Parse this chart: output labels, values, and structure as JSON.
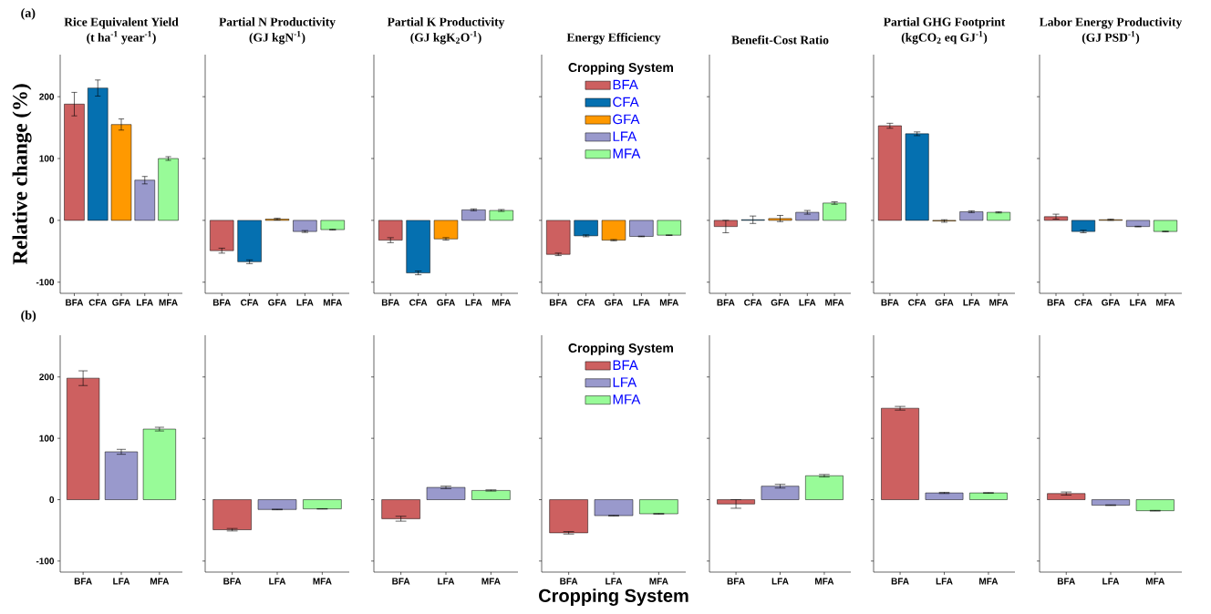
{
  "chart_data": [
    {
      "type": "bar",
      "title": "Rice Equivalent Yield",
      "subtitle": "(t ha$^{-1}$ year$^{-1}$)",
      "ylabel": "Relative change (%)",
      "annotations": [
        "(a)"
      ],
      "categories": [
        "BFA",
        "CFA",
        "GFA",
        "LFA",
        "MFA"
      ],
      "values": [
        188,
        214,
        155,
        65,
        100
      ],
      "errors": [
        19,
        13,
        9,
        6,
        3
      ],
      "colors": [
        "#cd6060",
        "#0570b0",
        "#ff9900",
        "#9999cc",
        "#98fb98"
      ],
      "ylim": [
        -118,
        268
      ],
      "yticks": [
        -100,
        0,
        100,
        200
      ]
    },
    {
      "type": "bar",
      "title": "Partial N Productivity",
      "subtitle": "(GJ kgN$^{-1}$)",
      "categories": [
        "BFA",
        "CFA",
        "GFA",
        "LFA",
        "MFA"
      ],
      "values": [
        -49,
        -67,
        2,
        -18,
        -15
      ],
      "errors": [
        4,
        3,
        1.5,
        1.5,
        0.5
      ],
      "colors": [
        "#cd6060",
        "#0570b0",
        "#ff9900",
        "#9999cc",
        "#98fb98"
      ],
      "ylim": [
        -118,
        268
      ],
      "yticks": [
        -100,
        0,
        100,
        200
      ],
      "tick_labels": "x"
    },
    {
      "type": "bar",
      "title": "Partial K Productivity",
      "subtitle": "(GJ kgK$_{2}$O$^{-1}$)",
      "categories": [
        "BFA",
        "CFA",
        "GFA",
        "LFA",
        "MFA"
      ],
      "values": [
        -32,
        -85,
        -30,
        17,
        16
      ],
      "errors": [
        4,
        3,
        2,
        1.5,
        1.5
      ],
      "colors": [
        "#cd6060",
        "#0570b0",
        "#ff9900",
        "#9999cc",
        "#98fb98"
      ],
      "ylim": [
        -118,
        268
      ],
      "yticks": [
        -100,
        0,
        100,
        200
      ],
      "tick_labels": "x"
    },
    {
      "type": "bar",
      "title": "Energy Efficiency",
      "legend": "top",
      "legend_title": "Cropping System",
      "categories": [
        "BFA",
        "CFA",
        "GFA",
        "LFA",
        "MFA"
      ],
      "series": [
        {
          "name": "BFA",
          "color": "#cd6060",
          "values": [
            -55,
            null,
            null,
            null,
            null
          ],
          "errors": [
            2,
            null,
            null,
            null,
            null
          ]
        },
        {
          "name": "CFA",
          "color": "#0570b0",
          "values": [
            null,
            -25,
            null,
            null,
            null
          ],
          "errors": [
            null,
            1.5,
            null,
            null,
            null
          ]
        },
        {
          "name": "GFA",
          "color": "#ff9900",
          "values": [
            null,
            null,
            -32,
            null,
            null
          ],
          "errors": [
            null,
            null,
            1,
            null,
            null
          ]
        },
        {
          "name": "LFA",
          "color": "#9999cc",
          "values": [
            null,
            null,
            null,
            -26,
            null
          ],
          "errors": [
            null,
            null,
            null,
            0.5,
            null
          ]
        },
        {
          "name": "MFA",
          "color": "#98fb98",
          "values": [
            null,
            null,
            null,
            null,
            -24
          ],
          "errors": [
            null,
            null,
            null,
            null,
            0.5
          ]
        }
      ],
      "ylim": [
        -118,
        268
      ],
      "yticks": [
        -100,
        0,
        100,
        200
      ],
      "tick_labels": "x"
    },
    {
      "type": "bar",
      "title": "Benefit-Cost Ratio",
      "categories": [
        "BFA",
        "CFA",
        "GFA",
        "LFA",
        "MFA"
      ],
      "values": [
        -10,
        1,
        3,
        13,
        28
      ],
      "errors": [
        10,
        6,
        5,
        3,
        2
      ],
      "colors": [
        "#cd6060",
        "#0570b0",
        "#ff9900",
        "#9999cc",
        "#98fb98"
      ],
      "ylim": [
        -118,
        268
      ],
      "yticks": [
        -100,
        0,
        100,
        200
      ],
      "tick_labels": "x"
    },
    {
      "type": "bar",
      "title": "Partial GHG Footprint",
      "subtitle": "(kgCO$_{2}$ eq GJ$^{-1}$)",
      "categories": [
        "BFA",
        "CFA",
        "GFA",
        "LFA",
        "MFA"
      ],
      "values": [
        153,
        140,
        -1,
        14,
        13
      ],
      "errors": [
        4,
        3,
        2,
        1.5,
        1
      ],
      "colors": [
        "#cd6060",
        "#0570b0",
        "#ff9900",
        "#9999cc",
        "#98fb98"
      ],
      "ylim": [
        -118,
        268
      ],
      "yticks": [
        -100,
        0,
        100,
        200
      ],
      "tick_labels": "x"
    },
    {
      "type": "bar",
      "title": "Labor Energy Productivity",
      "subtitle": "(GJ PSD$^{-1}$)",
      "categories": [
        "BFA",
        "CFA",
        "GFA",
        "LFA",
        "MFA"
      ],
      "values": [
        6,
        -18,
        1,
        -10,
        -18
      ],
      "errors": [
        4,
        2,
        1,
        0.5,
        0.5
      ],
      "colors": [
        "#cd6060",
        "#0570b0",
        "#ff9900",
        "#9999cc",
        "#98fb98"
      ],
      "ylim": [
        -118,
        268
      ],
      "yticks": [
        -100,
        0,
        100,
        200
      ],
      "tick_labels": "x"
    },
    {
      "type": "bar",
      "annotations": [
        "(b)"
      ],
      "categories": [
        "BFA",
        "LFA",
        "MFA"
      ],
      "values": [
        198,
        78,
        115
      ],
      "errors": [
        12,
        4,
        3
      ],
      "colors": [
        "#cd6060",
        "#9999cc",
        "#98fb98"
      ],
      "ylim": [
        -118,
        268
      ],
      "yticks": [
        -100,
        0,
        100,
        200
      ]
    },
    {
      "type": "bar",
      "categories": [
        "BFA",
        "LFA",
        "MFA"
      ],
      "values": [
        -49,
        -16,
        -15
      ],
      "errors": [
        2,
        0.5,
        0.3
      ],
      "colors": [
        "#cd6060",
        "#9999cc",
        "#98fb98"
      ],
      "ylim": [
        -118,
        268
      ],
      "yticks": [
        -100,
        0,
        100,
        200
      ],
      "tick_labels": "x"
    },
    {
      "type": "bar",
      "categories": [
        "BFA",
        "LFA",
        "MFA"
      ],
      "values": [
        -31,
        20,
        15
      ],
      "errors": [
        4,
        2,
        1
      ],
      "colors": [
        "#cd6060",
        "#9999cc",
        "#98fb98"
      ],
      "ylim": [
        -118,
        268
      ],
      "yticks": [
        -100,
        0,
        100,
        200
      ],
      "tick_labels": "x"
    },
    {
      "type": "bar",
      "xlabel": "Cropping System",
      "legend": "top",
      "legend_title": "Cropping System",
      "categories": [
        "BFA",
        "LFA",
        "MFA"
      ],
      "series": [
        {
          "name": "BFA",
          "color": "#cd6060",
          "values": [
            -54,
            null,
            null
          ],
          "errors": [
            2,
            null,
            null
          ]
        },
        {
          "name": "LFA",
          "color": "#9999cc",
          "values": [
            null,
            -26,
            null
          ],
          "errors": [
            null,
            0.5,
            null
          ]
        },
        {
          "name": "MFA",
          "color": "#98fb98",
          "values": [
            null,
            null,
            -23
          ],
          "errors": [
            null,
            null,
            0.5
          ]
        }
      ],
      "ylim": [
        -118,
        268
      ],
      "yticks": [
        -100,
        0,
        100,
        200
      ],
      "tick_labels": "x"
    },
    {
      "type": "bar",
      "categories": [
        "BFA",
        "LFA",
        "MFA"
      ],
      "values": [
        -7,
        22,
        39
      ],
      "errors": [
        7,
        3,
        2
      ],
      "colors": [
        "#cd6060",
        "#9999cc",
        "#98fb98"
      ],
      "ylim": [
        -118,
        268
      ],
      "yticks": [
        -100,
        0,
        100,
        200
      ],
      "tick_labels": "x"
    },
    {
      "type": "bar",
      "categories": [
        "BFA",
        "LFA",
        "MFA"
      ],
      "values": [
        149,
        11,
        11
      ],
      "errors": [
        3,
        1,
        0.5
      ],
      "colors": [
        "#cd6060",
        "#9999cc",
        "#98fb98"
      ],
      "ylim": [
        -118,
        268
      ],
      "yticks": [
        -100,
        0,
        100,
        200
      ],
      "tick_labels": "x"
    },
    {
      "type": "bar",
      "categories": [
        "BFA",
        "LFA",
        "MFA"
      ],
      "values": [
        10,
        -9,
        -18
      ],
      "errors": [
        2.5,
        0.5,
        0.5
      ],
      "colors": [
        "#cd6060",
        "#9999cc",
        "#98fb98"
      ],
      "ylim": [
        -118,
        268
      ],
      "yticks": [
        -100,
        0,
        100,
        200
      ],
      "tick_labels": "x"
    }
  ]
}
